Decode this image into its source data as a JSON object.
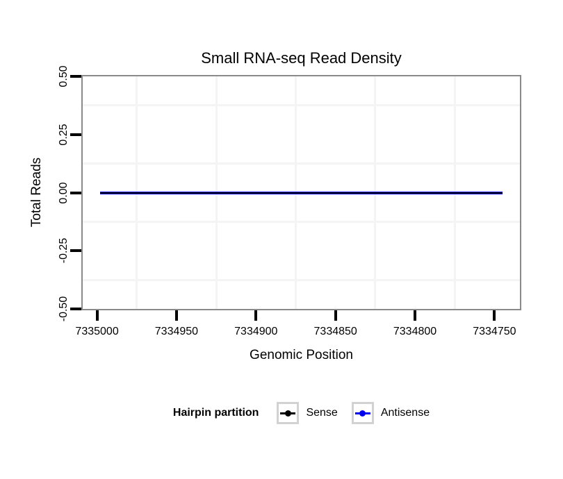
{
  "figure": {
    "title": "Small RNA-seq Read Density",
    "x_axis": {
      "label": "Genomic Position",
      "tick_labels": [
        "7335000",
        "7334950",
        "7334900",
        "7334850",
        "7334800",
        "7334750"
      ]
    },
    "y_axis": {
      "label": "Total Reads",
      "tick_labels": [
        "0.50",
        "0.25",
        "0.00",
        "-0.25",
        "-0.50"
      ]
    },
    "legend": {
      "title": "Hairpin partition",
      "items": [
        {
          "label": "Sense",
          "color": "#000000"
        },
        {
          "label": "Antisense",
          "color": "#0000EE"
        }
      ]
    }
  },
  "chart_data": {
    "type": "line",
    "title": "Small RNA-seq Read Density",
    "xlabel": "Genomic Position",
    "ylabel": "Total Reads",
    "x_reversed": true,
    "xlim": [
      7335009,
      7334734
    ],
    "ylim": [
      -0.5,
      0.5
    ],
    "x_ticks": [
      7335000,
      7334950,
      7334900,
      7334850,
      7334800,
      7334750
    ],
    "x_tick_labels": [
      "7335000",
      "7334950",
      "7334900",
      "7334850",
      "7334800",
      "7334750"
    ],
    "y_ticks": [
      0.5,
      0.25,
      0,
      -0.25,
      -0.5
    ],
    "y_tick_labels": [
      "0.50",
      "0.25",
      "0.00",
      "-0.25",
      "-0.50"
    ],
    "grid": "minor-gridlines-only",
    "grid_color": "#f4f4f4",
    "panel_border_color": "#8a8a8a",
    "legend_position": "bottom",
    "legend_title": "Hairpin partition",
    "series": [
      {
        "name": "Sense",
        "color": "#000000",
        "x": [
          7334998,
          7334745
        ],
        "values": [
          0,
          0
        ]
      },
      {
        "name": "Antisense",
        "color": "#0000EE",
        "x": [
          7334998,
          7334745
        ],
        "values": [
          0,
          0
        ]
      }
    ]
  }
}
